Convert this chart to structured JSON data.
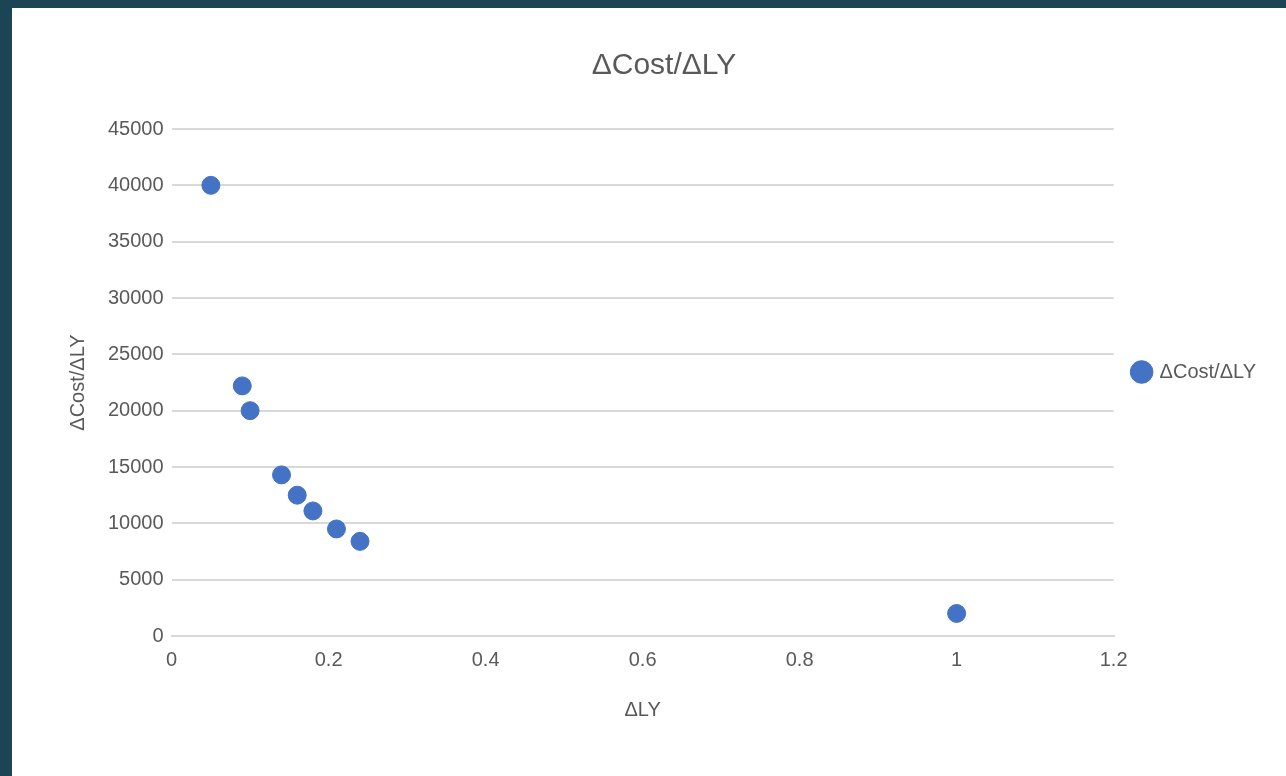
{
  "chart_data": {
    "type": "scatter",
    "title": "ΔCost/ΔLY",
    "xlabel": "ΔLY",
    "ylabel": "ΔCost/ΔLY",
    "series": [
      {
        "name": "ΔCost/ΔLY",
        "color": "#4472c4",
        "x": [
          0.05,
          0.09,
          0.1,
          0.14,
          0.16,
          0.18,
          0.21,
          0.24,
          1
        ],
        "values": [
          40000,
          22200,
          20000,
          14300,
          12500,
          11100,
          9500,
          8400,
          2000
        ]
      }
    ],
    "xlim": [
      0,
      1.2
    ],
    "xticks": [
      0,
      0.2,
      0.4,
      0.6,
      0.8,
      1,
      1.2
    ],
    "ylim": [
      0,
      45000
    ],
    "yticks": [
      0,
      5000,
      10000,
      15000,
      20000,
      25000,
      30000,
      35000,
      40000,
      45000
    ],
    "grid": "y",
    "legend": "right",
    "marker": "circle"
  }
}
